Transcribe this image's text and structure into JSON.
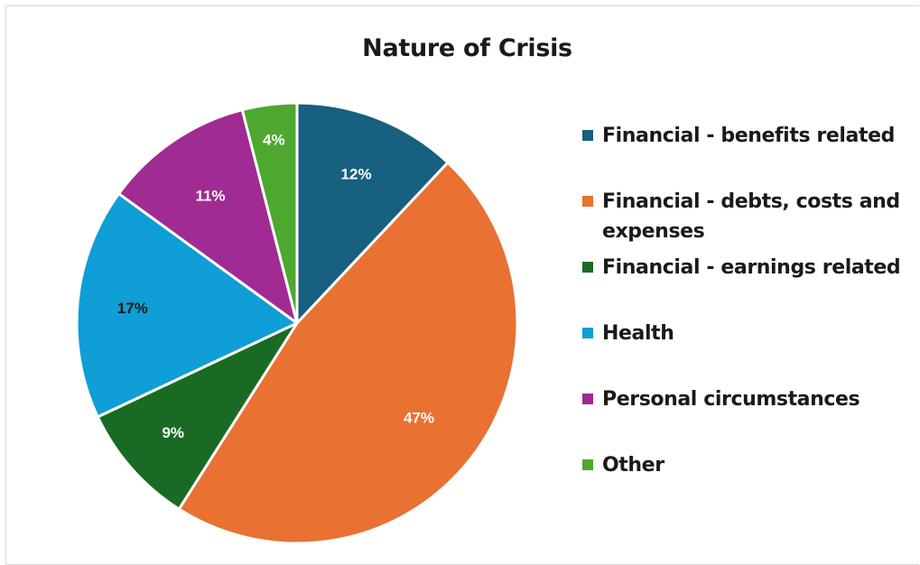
{
  "chart_data": {
    "type": "pie",
    "title": "Nature of Crisis",
    "legend_position": "right",
    "slices": [
      {
        "label": "Financial - benefits related",
        "value": 12,
        "data_label": "12%",
        "color": "#17607f",
        "label_color": "#ffffff"
      },
      {
        "label": "Financial - debts, costs and expenses",
        "value": 47,
        "data_label": "47%",
        "color": "#e97132",
        "label_color": "#ffffff"
      },
      {
        "label": "Financial - earnings related",
        "value": 9,
        "data_label": "9%",
        "color": "#196b24",
        "label_color": "#ffffff"
      },
      {
        "label": "Health",
        "value": 17,
        "data_label": "17%",
        "color": "#0f9ed5",
        "label_color": "#1a1a1a"
      },
      {
        "label": "Personal circumstances",
        "value": 11,
        "data_label": "11%",
        "color": "#a02b93",
        "label_color": "#ffffff"
      },
      {
        "label": "Other",
        "value": 4,
        "data_label": "4%",
        "color": "#4ea72e",
        "label_color": "#ffffff"
      }
    ]
  }
}
